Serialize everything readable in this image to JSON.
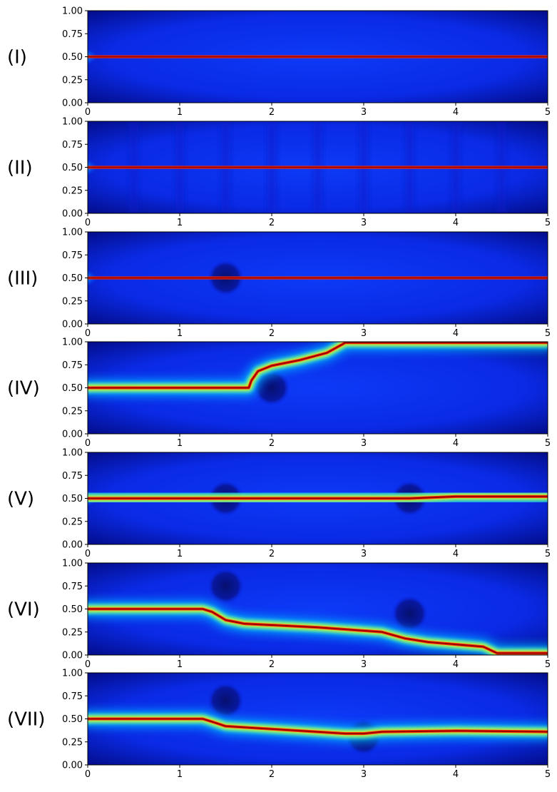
{
  "chart_data": {
    "type": "heatmap",
    "description_colormap": "jet",
    "xlim": [
      0,
      5
    ],
    "ylim": [
      0,
      1
    ],
    "x_ticks": [
      "0",
      "1",
      "2",
      "3",
      "4",
      "5"
    ],
    "y_ticks": [
      "0.00",
      "0.25",
      "0.50",
      "0.75",
      "1.00"
    ],
    "colors": {
      "low": "#00007f",
      "background": "#0a2cf5",
      "ridge": "#b00000"
    },
    "panels": [
      {
        "label": "(I)",
        "ridge_path": [
          [
            0,
            0.5
          ],
          [
            0.5,
            0.5
          ],
          [
            5,
            0.5
          ]
        ],
        "obstacles": []
      },
      {
        "label": "(II)",
        "ridge_path": [
          [
            0,
            0.5
          ],
          [
            0.5,
            0.5
          ],
          [
            5,
            0.5
          ]
        ],
        "obstacles": [],
        "stripes_x": [
          0.5,
          1.0,
          1.5,
          2.0,
          2.5,
          3.0,
          3.5,
          4.0,
          4.5
        ]
      },
      {
        "label": "(III)",
        "ridge_path": [
          [
            0,
            0.5
          ],
          [
            1.3,
            0.5
          ],
          [
            1.5,
            0.5
          ],
          [
            1.75,
            0.5
          ],
          [
            5,
            0.5
          ]
        ],
        "obstacles": [
          [
            1.5,
            0.5,
            0.2
          ]
        ]
      },
      {
        "label": "(IV)",
        "ridge_path": [
          [
            0,
            0.5
          ],
          [
            1.75,
            0.5
          ],
          [
            1.78,
            0.58
          ],
          [
            1.85,
            0.68
          ],
          [
            2.0,
            0.74
          ],
          [
            2.3,
            0.8
          ],
          [
            2.6,
            0.88
          ],
          [
            2.8,
            0.99
          ],
          [
            5,
            0.99
          ]
        ],
        "obstacles": [
          [
            2.0,
            0.5,
            0.2
          ]
        ]
      },
      {
        "label": "(V)",
        "ridge_path": [
          [
            0,
            0.5
          ],
          [
            2.5,
            0.5
          ],
          [
            3.5,
            0.5
          ],
          [
            4.0,
            0.52
          ],
          [
            5,
            0.52
          ]
        ],
        "obstacles": [
          [
            1.5,
            0.5,
            0.2
          ],
          [
            3.5,
            0.5,
            0.2
          ]
        ]
      },
      {
        "label": "(VI)",
        "ridge_path": [
          [
            0,
            0.5
          ],
          [
            1.25,
            0.5
          ],
          [
            1.35,
            0.47
          ],
          [
            1.5,
            0.38
          ],
          [
            1.7,
            0.34
          ],
          [
            2.5,
            0.3
          ],
          [
            3.2,
            0.25
          ],
          [
            3.45,
            0.18
          ],
          [
            3.7,
            0.14
          ],
          [
            4.3,
            0.09
          ],
          [
            4.45,
            0.02
          ],
          [
            5,
            0.02
          ]
        ],
        "obstacles": [
          [
            1.5,
            0.75,
            0.2
          ],
          [
            3.5,
            0.45,
            0.2
          ]
        ]
      },
      {
        "label": "(VII)",
        "ridge_path": [
          [
            0,
            0.5
          ],
          [
            1.25,
            0.5
          ],
          [
            1.35,
            0.47
          ],
          [
            1.5,
            0.42
          ],
          [
            2.0,
            0.39
          ],
          [
            2.8,
            0.34
          ],
          [
            3.0,
            0.34
          ],
          [
            3.2,
            0.36
          ],
          [
            4.0,
            0.37
          ],
          [
            5,
            0.36
          ]
        ],
        "obstacles": [
          [
            1.5,
            0.7,
            0.2
          ],
          [
            3.0,
            0.3,
            0.2
          ]
        ]
      }
    ]
  }
}
